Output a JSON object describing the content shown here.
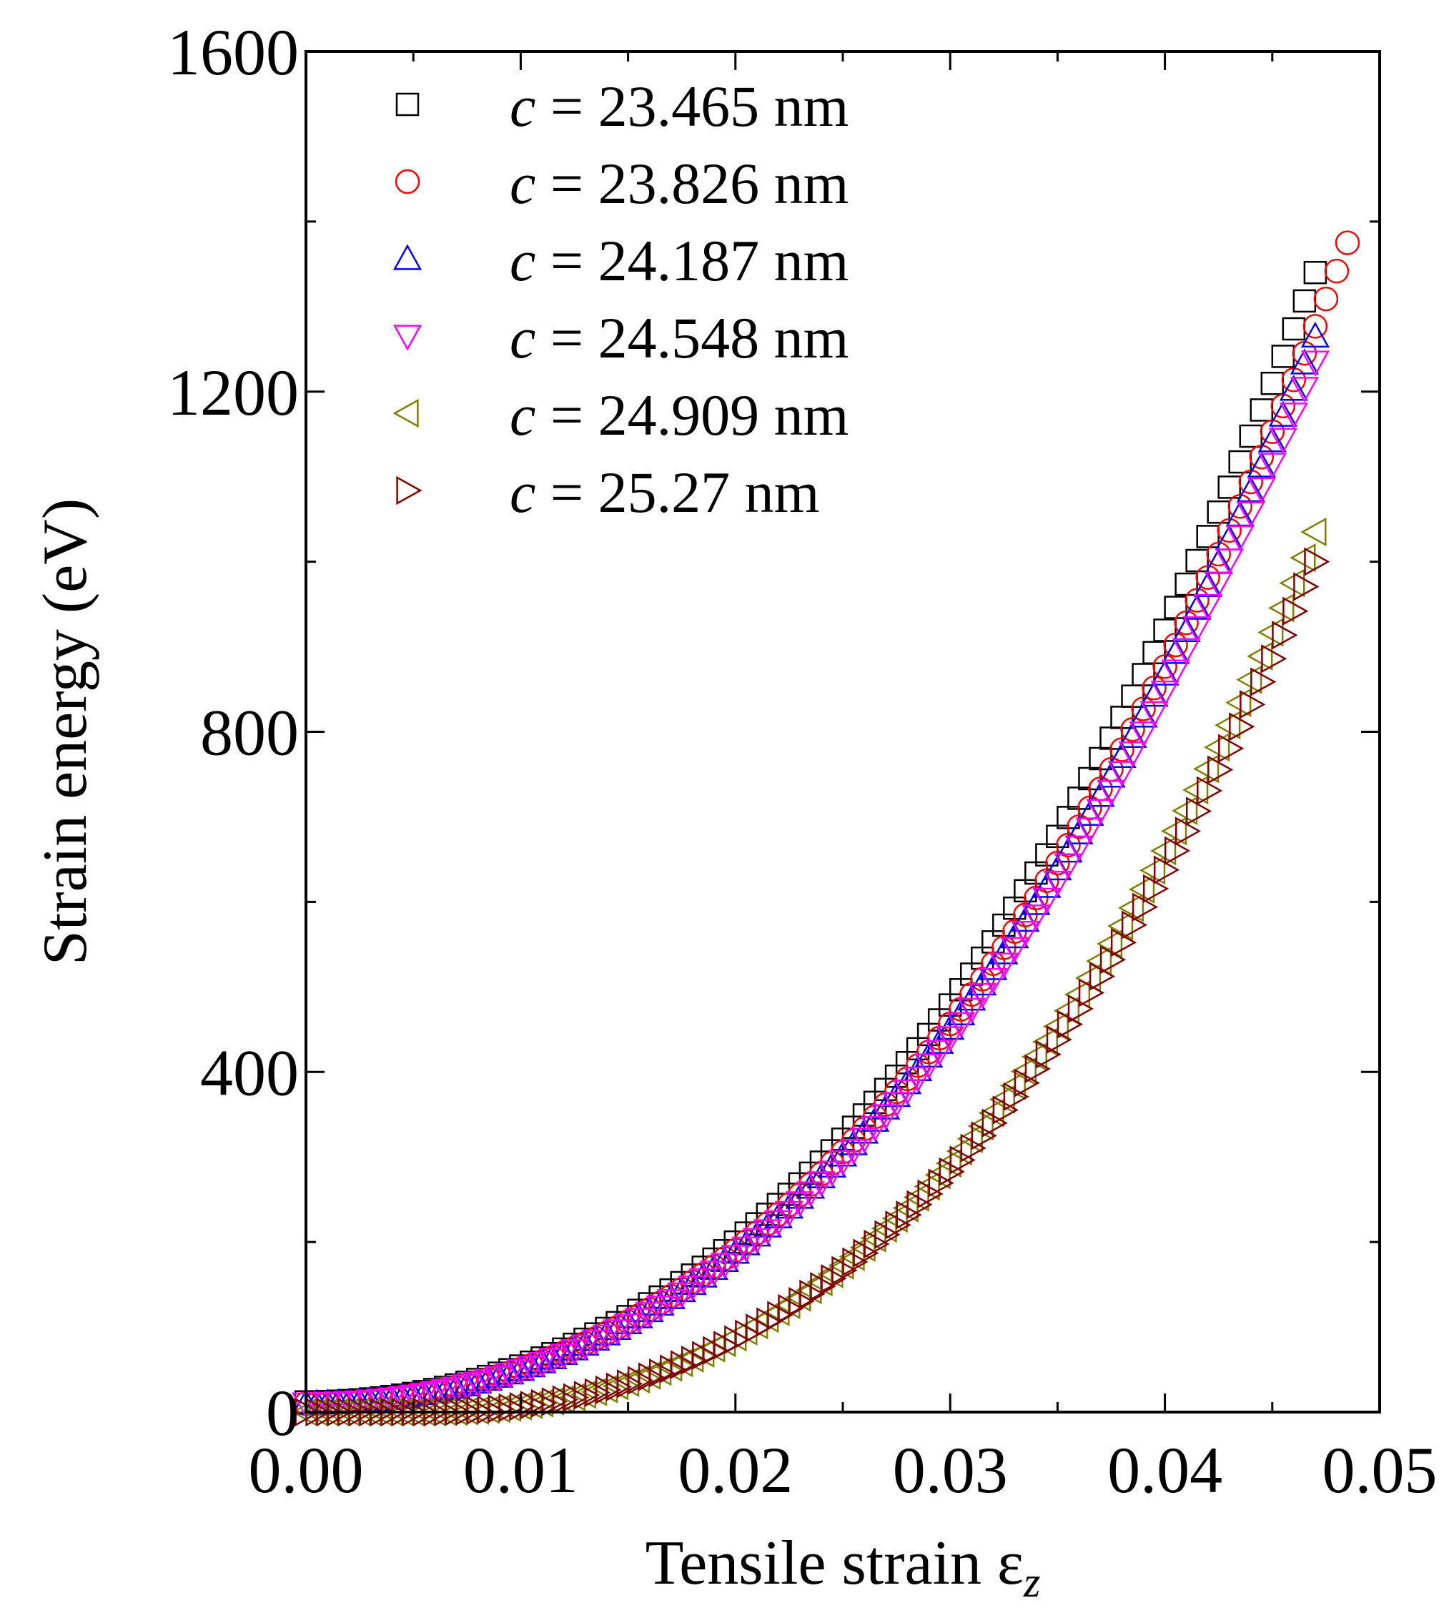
{
  "chart_data": {
    "type": "scatter",
    "xlabel": "Tensile strain ε",
    "xlabel_subscript": "z",
    "ylabel": "Strain energy (eV)",
    "xlim": [
      0,
      0.05
    ],
    "ylim": [
      0,
      1600
    ],
    "x_ticks": [
      0,
      0.01,
      0.02,
      0.03,
      0.04,
      0.05
    ],
    "x_tick_labels": [
      "0.00",
      "0.01",
      "0.02",
      "0.03",
      "0.04",
      "0.05"
    ],
    "y_ticks": [
      0,
      400,
      800,
      1200,
      1600
    ],
    "y_tick_labels": [
      "0",
      "400",
      "800",
      "1200",
      "1600"
    ],
    "grid": false,
    "legend_position": "top-left",
    "x_step": 0.0005,
    "series": [
      {
        "name": "c = 23.465 nm",
        "legend_var": "c",
        "legend_value": " = 23.465 nm",
        "marker": "square",
        "color": "#000000",
        "x_max": 0.047,
        "y_end": 1340,
        "y0": 12
      },
      {
        "name": "c = 23.826 nm",
        "legend_var": "c",
        "legend_value": " = 23.826 nm",
        "marker": "circle",
        "color": "#ff0000",
        "x_max": 0.0485,
        "y_end": 1375,
        "y0": 10
      },
      {
        "name": "c = 24.187 nm",
        "legend_var": "c",
        "legend_value": " = 24.187 nm",
        "marker": "triangle-up",
        "color": "#0000ff",
        "x_max": 0.047,
        "y_end": 1265,
        "y0": 10
      },
      {
        "name": "c = 24.548 nm",
        "legend_var": "c",
        "legend_value": " = 24.548 nm",
        "marker": "triangle-down",
        "color": "#ff00ff",
        "x_max": 0.047,
        "y_end": 1235,
        "y0": 10
      },
      {
        "name": "c = 24.909 nm",
        "legend_var": "c",
        "legend_value": " = 24.909 nm",
        "marker": "triangle-left",
        "color": "#808000",
        "x_max": 0.047,
        "y_end": 1035,
        "y0": 0
      },
      {
        "name": "c = 25.27 nm",
        "legend_var": "c",
        "legend_value": " = 25.27 nm",
        "marker": "triangle-right",
        "color": "#800000",
        "x_max": 0.047,
        "y_end": 1000,
        "y0": 0
      }
    ]
  }
}
